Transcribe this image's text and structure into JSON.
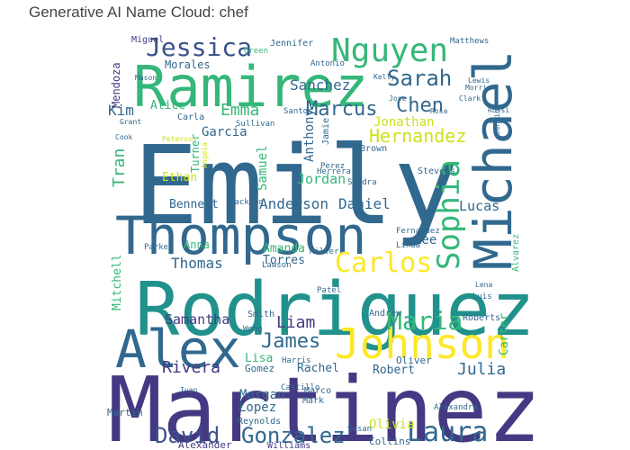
{
  "chart_data": {
    "type": "wordcloud",
    "title": "Generative AI Name Cloud: chef",
    "colormap": "viridis",
    "words": [
      {
        "text": "Emily",
        "weight": 1.0,
        "color": "#31688e"
      },
      {
        "text": "Martinez",
        "weight": 0.94,
        "color": "#443a83"
      },
      {
        "text": "Rodriguez",
        "weight": 0.77,
        "color": "#21918c"
      },
      {
        "text": "Thompson",
        "weight": 0.68,
        "color": "#31688e"
      },
      {
        "text": "Michael",
        "weight": 0.62,
        "color": "#31688e"
      },
      {
        "text": "Ramirez",
        "weight": 0.6,
        "color": "#35b779"
      },
      {
        "text": "Alex",
        "weight": 0.58,
        "color": "#31688e"
      },
      {
        "text": "Johnson",
        "weight": 0.45,
        "color": "#fde725"
      },
      {
        "text": "Nguyen",
        "weight": 0.36,
        "color": "#35b779"
      },
      {
        "text": "Sophia",
        "weight": 0.34,
        "color": "#35b779"
      },
      {
        "text": "Carlos",
        "weight": 0.3,
        "color": "#fde725"
      },
      {
        "text": "Laura",
        "weight": 0.29,
        "color": "#31688e"
      },
      {
        "text": "Jessica",
        "weight": 0.28,
        "color": "#3b528b"
      },
      {
        "text": "Maria",
        "weight": 0.27,
        "color": "#35b779"
      },
      {
        "text": "Gonzalez",
        "weight": 0.25,
        "color": "#31688e"
      },
      {
        "text": "Sarah",
        "weight": 0.24,
        "color": "#31688e"
      },
      {
        "text": "David",
        "weight": 0.24,
        "color": "#3b528b"
      },
      {
        "text": "Chen",
        "weight": 0.22,
        "color": "#31688e"
      },
      {
        "text": "James",
        "weight": 0.21,
        "color": "#31688e"
      },
      {
        "text": "Marcus",
        "weight": 0.19,
        "color": "#31688e"
      },
      {
        "text": "Hernandez",
        "weight": 0.18,
        "color": "#cde11d"
      },
      {
        "text": "Julia",
        "weight": 0.17,
        "color": "#31688e"
      },
      {
        "text": "Rivera",
        "weight": 0.17,
        "color": "#443a83"
      },
      {
        "text": "Liam",
        "weight": 0.17,
        "color": "#443a83"
      },
      {
        "text": "Emma",
        "weight": 0.17,
        "color": "#35b779"
      },
      {
        "text": "Thomas",
        "weight": 0.16,
        "color": "#31688e"
      },
      {
        "text": "Anderson",
        "weight": 0.16,
        "color": "#31688e"
      },
      {
        "text": "Daniel",
        "weight": 0.16,
        "color": "#31688e"
      },
      {
        "text": "Tran",
        "weight": 0.16,
        "color": "#35b779"
      },
      {
        "text": "Kim",
        "weight": 0.15,
        "color": "#31688e"
      },
      {
        "text": "Sanchez",
        "weight": 0.15,
        "color": "#31688e"
      },
      {
        "text": "Samantha",
        "weight": 0.14,
        "color": "#443a83"
      },
      {
        "text": "Lucas",
        "weight": 0.14,
        "color": "#31688e"
      },
      {
        "text": "Jordan",
        "weight": 0.14,
        "color": "#35b779"
      },
      {
        "text": "Anthony",
        "weight": 0.13,
        "color": "#31688e"
      },
      {
        "text": "Garcia",
        "weight": 0.13,
        "color": "#31688e"
      },
      {
        "text": "Samuel",
        "weight": 0.13,
        "color": "#35b779"
      },
      {
        "text": "Lee",
        "weight": 0.13,
        "color": "#31688e"
      },
      {
        "text": "Lopez",
        "weight": 0.13,
        "color": "#31688e"
      },
      {
        "text": "Olivia",
        "weight": 0.12,
        "color": "#cde11d"
      },
      {
        "text": "Morgan",
        "weight": 0.12,
        "color": "#31688e"
      },
      {
        "text": "Jonathan",
        "weight": 0.12,
        "color": "#cde11d"
      },
      {
        "text": "Alice",
        "weight": 0.11,
        "color": "#35b779"
      },
      {
        "text": "Torres",
        "weight": 0.11,
        "color": "#31688e"
      },
      {
        "text": "Amanda",
        "weight": 0.11,
        "color": "#35b779"
      },
      {
        "text": "Robert",
        "weight": 0.11,
        "color": "#31688e"
      },
      {
        "text": "Lisa",
        "weight": 0.11,
        "color": "#35b779"
      },
      {
        "text": "Ethan",
        "weight": 0.1,
        "color": "#cde11d"
      },
      {
        "text": "Rachel",
        "weight": 0.1,
        "color": "#31688e"
      },
      {
        "text": "Mitchell",
        "weight": 0.1,
        "color": "#35b779"
      },
      {
        "text": "Carter",
        "weight": 0.1,
        "color": "#35b779"
      },
      {
        "text": "Bennett",
        "weight": 0.1,
        "color": "#31688e"
      },
      {
        "text": "Morales",
        "weight": 0.09,
        "color": "#31688e"
      },
      {
        "text": "Mendoza",
        "weight": 0.09,
        "color": "#443a83"
      },
      {
        "text": "Turner",
        "weight": 0.09,
        "color": "#35b779"
      },
      {
        "text": "Anna",
        "weight": 0.09,
        "color": "#35b779"
      },
      {
        "text": "Gomez",
        "weight": 0.09,
        "color": "#31688e"
      },
      {
        "text": "Martin",
        "weight": 0.09,
        "color": "#31688e"
      },
      {
        "text": "Alexander",
        "weight": 0.09,
        "color": "#443a83"
      },
      {
        "text": "Collins",
        "weight": 0.09,
        "color": "#31688e"
      },
      {
        "text": "Oliver",
        "weight": 0.09,
        "color": "#31688e"
      },
      {
        "text": "Jennifer",
        "weight": 0.08,
        "color": "#31688e"
      },
      {
        "text": "Carla",
        "weight": 0.08,
        "color": "#31688e"
      },
      {
        "text": "Jamie",
        "weight": 0.08,
        "color": "#31688e"
      },
      {
        "text": "Reynolds",
        "weight": 0.08,
        "color": "#31688e"
      },
      {
        "text": "Williams",
        "weight": 0.08,
        "color": "#443a83"
      },
      {
        "text": "Mark",
        "weight": 0.08,
        "color": "#31688e"
      },
      {
        "text": "Marco",
        "weight": 0.08,
        "color": "#31688e"
      },
      {
        "text": "Alvarez",
        "weight": 0.08,
        "color": "#35b779"
      },
      {
        "text": "Andrew",
        "weight": 0.07,
        "color": "#31688e"
      },
      {
        "text": "Smith",
        "weight": 0.07,
        "color": "#31688e"
      },
      {
        "text": "Miguel",
        "weight": 0.07,
        "color": "#443a83"
      },
      {
        "text": "Santos",
        "weight": 0.07,
        "color": "#31688e"
      },
      {
        "text": "Brown",
        "weight": 0.07,
        "color": "#31688e"
      },
      {
        "text": "Sandra",
        "weight": 0.07,
        "color": "#31688e"
      },
      {
        "text": "Stevens",
        "weight": 0.07,
        "color": "#31688e"
      },
      {
        "text": "Parker",
        "weight": 0.07,
        "color": "#31688e"
      },
      {
        "text": "Antonio",
        "weight": 0.07,
        "color": "#31688e"
      },
      {
        "text": "Harris",
        "weight": 0.07,
        "color": "#31688e"
      },
      {
        "text": "Roberts",
        "weight": 0.07,
        "color": "#31688e"
      },
      {
        "text": "Alexandra",
        "weight": 0.07,
        "color": "#31688e"
      },
      {
        "text": "Matthews",
        "weight": 0.06,
        "color": "#31688e"
      },
      {
        "text": "Sullivan",
        "weight": 0.06,
        "color": "#31688e"
      },
      {
        "text": "Fernandez",
        "weight": 0.06,
        "color": "#31688e"
      },
      {
        "text": "Patel",
        "weight": 0.06,
        "color": "#31688e"
      },
      {
        "text": "Lawson",
        "weight": 0.06,
        "color": "#31688e"
      },
      {
        "text": "Miller",
        "weight": 0.06,
        "color": "#31688e"
      },
      {
        "text": "Jackson",
        "weight": 0.06,
        "color": "#31688e"
      },
      {
        "text": "Perez",
        "weight": 0.06,
        "color": "#31688e"
      },
      {
        "text": "Herrera",
        "weight": 0.06,
        "color": "#31688e"
      },
      {
        "text": "Susan",
        "weight": 0.05,
        "color": "#31688e"
      },
      {
        "text": "Green",
        "weight": 0.05,
        "color": "#35b779"
      },
      {
        "text": "Wong",
        "weight": 0.05,
        "color": "#31688e"
      },
      {
        "text": "Castillo",
        "weight": 0.05,
        "color": "#31688e"
      },
      {
        "text": "Luis",
        "weight": 0.05,
        "color": "#31688e"
      },
      {
        "text": "Linda",
        "weight": 0.05,
        "color": "#31688e"
      },
      {
        "text": "Grant",
        "weight": 0.05,
        "color": "#31688e"
      },
      {
        "text": "Peterson",
        "weight": 0.05,
        "color": "#cde11d"
      },
      {
        "text": "Angela",
        "weight": 0.05,
        "color": "#cde11d"
      },
      {
        "text": "Jenkins",
        "weight": 0.05,
        "color": "#31688e"
      },
      {
        "text": "Mason",
        "weight": 0.05,
        "color": "#31688e"
      },
      {
        "text": "Cook",
        "weight": 0.05,
        "color": "#31688e"
      },
      {
        "text": "Lewis",
        "weight": 0.05,
        "color": "#31688e"
      },
      {
        "text": "Kelly",
        "weight": 0.05,
        "color": "#31688e"
      },
      {
        "text": "Morris",
        "weight": 0.05,
        "color": "#31688e"
      },
      {
        "text": "Diaz",
        "weight": 0.05,
        "color": "#31688e"
      },
      {
        "text": "Rosa",
        "weight": 0.05,
        "color": "#31688e"
      },
      {
        "text": "Clark",
        "weight": 0.05,
        "color": "#31688e"
      },
      {
        "text": "Rossi",
        "weight": 0.05,
        "color": "#31688e"
      },
      {
        "text": "Jose",
        "weight": 0.05,
        "color": "#31688e"
      },
      {
        "text": "Ivan",
        "weight": 0.05,
        "color": "#31688e"
      },
      {
        "text": "Lena",
        "weight": 0.05,
        "color": "#31688e"
      },
      {
        "text": "Ruiz",
        "weight": 0.05,
        "color": "#31688e"
      }
    ]
  }
}
